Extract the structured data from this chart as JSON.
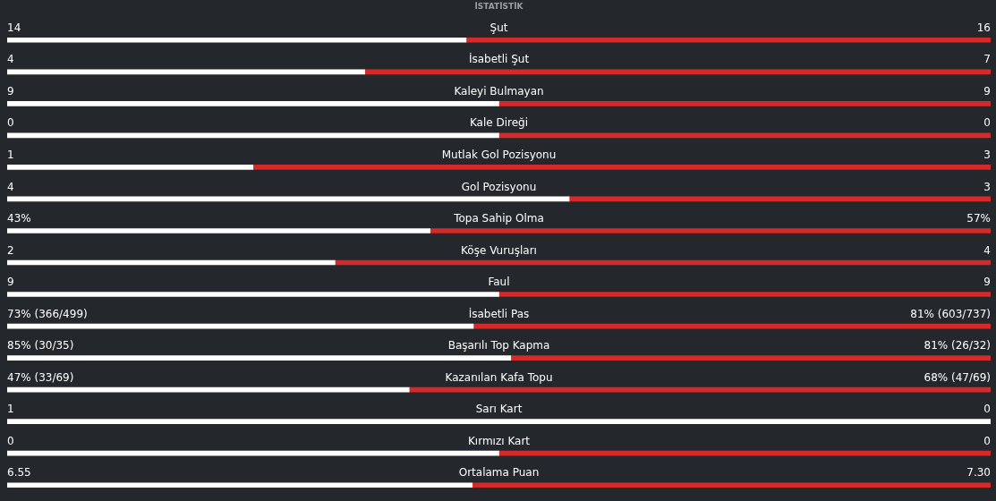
{
  "chart_data": {
    "type": "other",
    "title": "İSTATİSTİK",
    "categories": [
      "Şut",
      "İsabetli Şut",
      "Kaleyi Bulmayan",
      "Kale Direği",
      "Mutlak Gol Pozisyonu",
      "Gol Pozisyonu",
      "Topa Sahip Olma",
      "Köşe Vuruşları",
      "Faul",
      "İsabetli Pas",
      "Başarılı Top Kapma",
      "Kazanılan Kafa Topu",
      "Sarı Kart",
      "Kırmızı Kart",
      "Ortalama Puan"
    ],
    "series": [
      {
        "color": "#ffffff",
        "values": [
          14,
          4,
          9,
          0,
          1,
          4,
          43,
          2,
          9,
          73,
          85,
          47,
          1,
          0,
          6.55
        ],
        "value_labels": [
          "14",
          "4",
          "9",
          "0",
          "1",
          "4",
          "43%",
          "2",
          "9",
          "73% (366/499)",
          "85% (30/35)",
          "47% (33/69)",
          "1",
          "0",
          "6.55"
        ]
      },
      {
        "color": "#d42a2a",
        "values": [
          16,
          7,
          9,
          0,
          3,
          3,
          57,
          4,
          9,
          81,
          81,
          68,
          0,
          0,
          7.3
        ],
        "value_labels": [
          "16",
          "7",
          "9",
          "0",
          "3",
          "3",
          "57%",
          "4",
          "9",
          "81% (603/737)",
          "81% (26/32)",
          "68% (47/69)",
          "0",
          "0",
          "7.30"
        ]
      }
    ]
  }
}
